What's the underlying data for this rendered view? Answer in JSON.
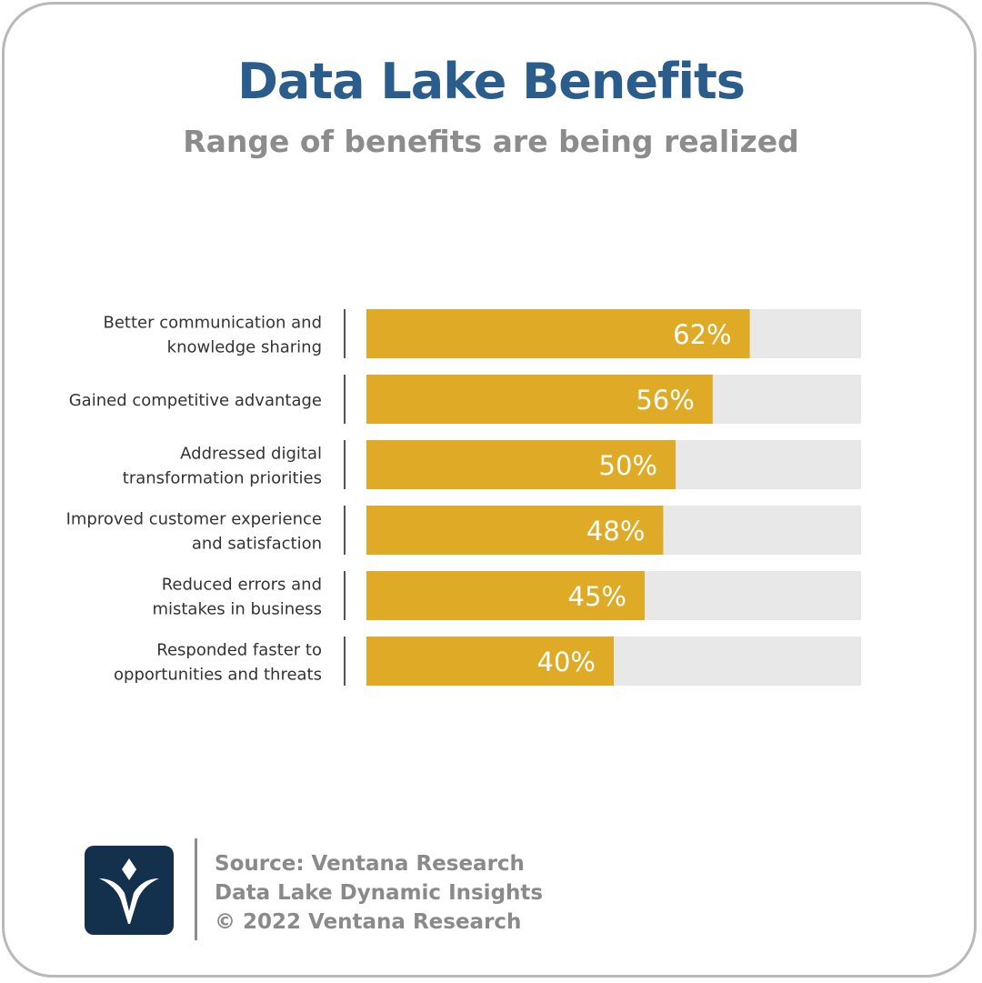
{
  "header": {
    "title": "Data Lake Benefits",
    "subtitle": "Range of benefits are being realized"
  },
  "chart_data": {
    "type": "bar",
    "orientation": "horizontal",
    "categories": [
      [
        "Better communication and",
        "knowledge sharing"
      ],
      [
        "Gained competitive advantage"
      ],
      [
        "Addressed digital",
        "transformation priorities"
      ],
      [
        "Improved customer experience",
        "and satisfaction"
      ],
      [
        "Reduced errors and",
        "mistakes in business"
      ],
      [
        "Responded faster to",
        "opportunities and threats"
      ]
    ],
    "values": [
      62,
      56,
      50,
      48,
      45,
      40
    ],
    "value_labels": [
      "62%",
      "56%",
      "50%",
      "48%",
      "45%",
      "40%"
    ],
    "xlim": [
      0,
      80
    ],
    "grid": false,
    "colors": {
      "bar": "#dfab26",
      "track": "#e7e8e7",
      "label": "#ffffff",
      "category": "#333333",
      "tick": "#555555"
    }
  },
  "footer": {
    "logo_icon": "ventana-v-logo",
    "lines": [
      "Source: Ventana Research",
      "Data Lake Dynamic Insights",
      "© 2022 Ventana Research"
    ]
  }
}
